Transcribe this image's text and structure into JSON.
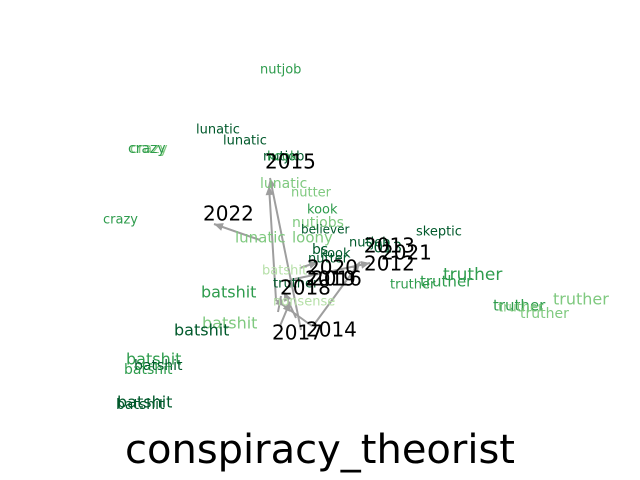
{
  "title": "conspiracy_theorist",
  "colors": {
    "edge": "#9e9e9e",
    "year": "#000000",
    "dark": "#00592b",
    "mid": "#2e9c4d",
    "light": "#7fc97f",
    "pale": "#b6e0a8"
  },
  "years": [
    "2012",
    "2013",
    "2014",
    "2015",
    "2016",
    "2017",
    "2018",
    "2019",
    "2020",
    "2021",
    "2022"
  ],
  "words": [
    "nutjob",
    "lunatic",
    "lunatic",
    "crazy",
    "crazy",
    "nutjob",
    "kook",
    "lunatic",
    "nutter",
    "kook",
    "nutjobs",
    "crazy",
    "believer",
    "lunatic",
    "loony",
    "nutjob",
    "skeptic",
    "bs",
    "kook",
    "nutter",
    "batshit",
    "truther",
    "truther",
    "truther",
    "nonsense",
    "batshit",
    "batshit",
    "batshit",
    "truther",
    "truther",
    "truther",
    "truther",
    "batshit",
    "batshit",
    "batshit",
    "batshit",
    "batshit",
    "truther",
    "2013"
  ]
}
